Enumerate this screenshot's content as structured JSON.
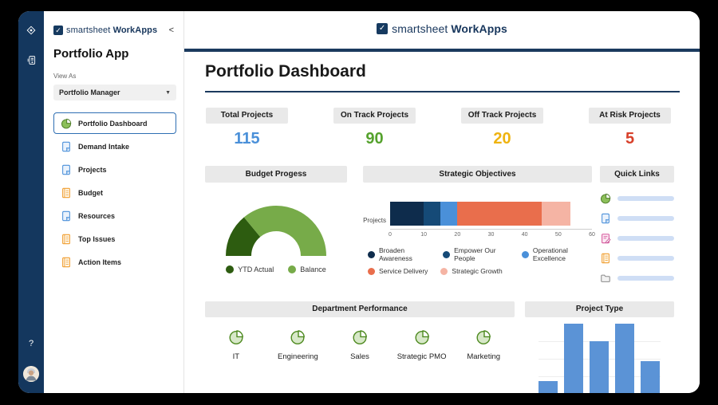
{
  "colors": {
    "rail_bg": "#14375e",
    "navy": "#1b3a5e",
    "logo_navy": "#17365c",
    "pill_bg": "#e9e9e9",
    "selected_border": "#2f6fb3",
    "quick_link_bar": "#cfdef5"
  },
  "rail": {
    "help_label": "?",
    "icons": [
      "workapps-diamond-icon",
      "app-device-icon"
    ]
  },
  "sidebar": {
    "logo_check": "✓",
    "logo_text": "smartsheet",
    "logo_suffix": "WorkApps",
    "collapse_glyph": "<",
    "app_title": "Portfolio App",
    "view_as_label": "View As",
    "view_as_value": "Portfolio Manager",
    "view_as_caret": "▼",
    "items": [
      {
        "label": "Portfolio Dashboard",
        "icon": "pie",
        "selected": true
      },
      {
        "label": "Demand Intake",
        "icon": "doc",
        "selected": false
      },
      {
        "label": "Projects",
        "icon": "doc",
        "selected": false
      },
      {
        "label": "Budget",
        "icon": "list",
        "selected": false
      },
      {
        "label": "Resources",
        "icon": "doc",
        "selected": false
      },
      {
        "label": "Top Issues",
        "icon": "list",
        "selected": false
      },
      {
        "label": "Action Items",
        "icon": "list",
        "selected": false
      }
    ]
  },
  "header": {
    "logo_check": "✓",
    "logo_text": "smartsheet",
    "logo_suffix": "WorkApps"
  },
  "page": {
    "title": "Portfolio Dashboard"
  },
  "stats": [
    {
      "label": "Total Projects",
      "value": "115",
      "color": "#4a90d9"
    },
    {
      "label": "On Track Projects",
      "value": "90",
      "color": "#55a22d"
    },
    {
      "label": "Off Track Projects",
      "value": "20",
      "color": "#efb310"
    },
    {
      "label": "At Risk Projects",
      "value": "5",
      "color": "#d8402a"
    }
  ],
  "sections": {
    "budget_title": "Budget Progess",
    "strategic_title": "Strategic Objectives",
    "quick_links_title": "Quick Links",
    "department_title": "Department Performance",
    "project_type_title": "Project Type"
  },
  "quick_links": {
    "items": [
      {
        "icon": "pie"
      },
      {
        "icon": "doc"
      },
      {
        "icon": "clipboard"
      },
      {
        "icon": "list"
      },
      {
        "icon": "folder"
      }
    ]
  },
  "departments": [
    "IT",
    "Engineering",
    "Sales",
    "Strategic PMO",
    "Marketing"
  ],
  "chart_data": [
    {
      "type": "pie",
      "variant": "semicircle-donut-gauge",
      "title": "Budget Progess",
      "labels": [
        "YTD Actual",
        "Balance"
      ],
      "values": [
        28,
        72
      ],
      "colors": [
        "#2d5c10",
        "#77ab49"
      ],
      "legend_position": "bottom"
    },
    {
      "type": "bar",
      "variant": "horizontal-stacked",
      "title": "Strategic Objectives",
      "categories": [
        "Projects"
      ],
      "series": [
        {
          "name": "Broaden Awareness",
          "values": [
            10
          ],
          "color": "#0e2c4c"
        },
        {
          "name": "Empower Our People",
          "values": [
            5
          ],
          "color": "#154a77"
        },
        {
          "name": "Operational Excellence",
          "values": [
            5
          ],
          "color": "#4a90d9"
        },
        {
          "name": "Service Delivery",
          "values": [
            25
          ],
          "color": "#e96e4c"
        },
        {
          "name": "Strategic Growth",
          "values": [
            8.5
          ],
          "color": "#f5b4a4"
        }
      ],
      "xlim": [
        0,
        60
      ],
      "xticks": [
        0,
        10,
        20,
        30,
        40,
        50,
        60
      ],
      "ylabel": "Projects",
      "grid": false,
      "legend_position": "bottom"
    },
    {
      "type": "bar",
      "variant": "vertical",
      "title": "Project Type",
      "categories": [
        "",
        "",
        "",
        "",
        ""
      ],
      "values": [
        20,
        100,
        76,
        100,
        48
      ],
      "value_unit": "relative-percent (axis cut off at viewport bottom)",
      "color": "#5b93d6",
      "grid": true
    }
  ]
}
